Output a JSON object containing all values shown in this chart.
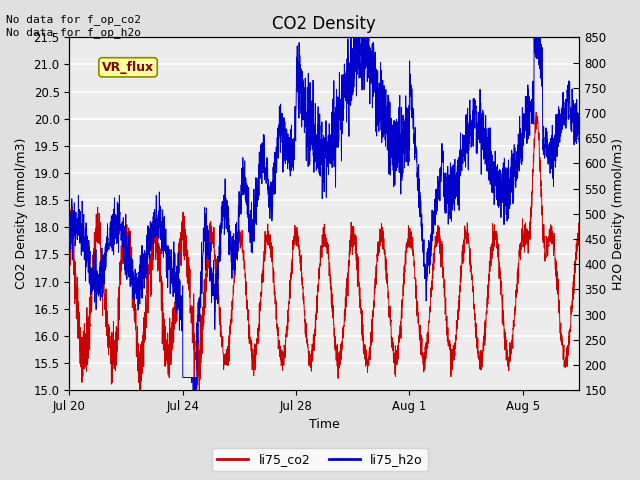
{
  "title": "CO2 Density",
  "xlabel": "Time",
  "ylabel_left": "CO2 Density (mmol/m3)",
  "ylabel_right": "H2O Density (mmol/m3)",
  "ylim_left": [
    15.0,
    21.5
  ],
  "ylim_right": [
    150,
    850
  ],
  "yticks_left": [
    15.0,
    15.5,
    16.0,
    16.5,
    17.0,
    17.5,
    18.0,
    18.5,
    19.0,
    19.5,
    20.0,
    20.5,
    21.0,
    21.5
  ],
  "yticks_right": [
    150,
    200,
    250,
    300,
    350,
    400,
    450,
    500,
    550,
    600,
    650,
    700,
    750,
    800,
    850
  ],
  "xtick_labels": [
    "Jul 20",
    "Jul 24",
    "Jul 28",
    "Aug 1",
    "Aug 5"
  ],
  "xtick_positions": [
    0,
    4,
    8,
    12,
    16
  ],
  "note_text": "No data for f_op_co2\nNo data for f_op_h2o",
  "vr_flux_label": "VR_flux",
  "legend_labels": [
    "li75_co2",
    "li75_h2o"
  ],
  "legend_colors": [
    "#cc0000",
    "#0000cc"
  ],
  "co2_color": "#cc0000",
  "h2o_color": "#0000cc",
  "bg_color": "#e0e0e0",
  "plot_bg_color": "#ececec",
  "grid_color": "#ffffff",
  "title_fontsize": 12,
  "label_fontsize": 9,
  "tick_fontsize": 8.5,
  "note_fontsize": 8,
  "legend_fontsize": 9
}
